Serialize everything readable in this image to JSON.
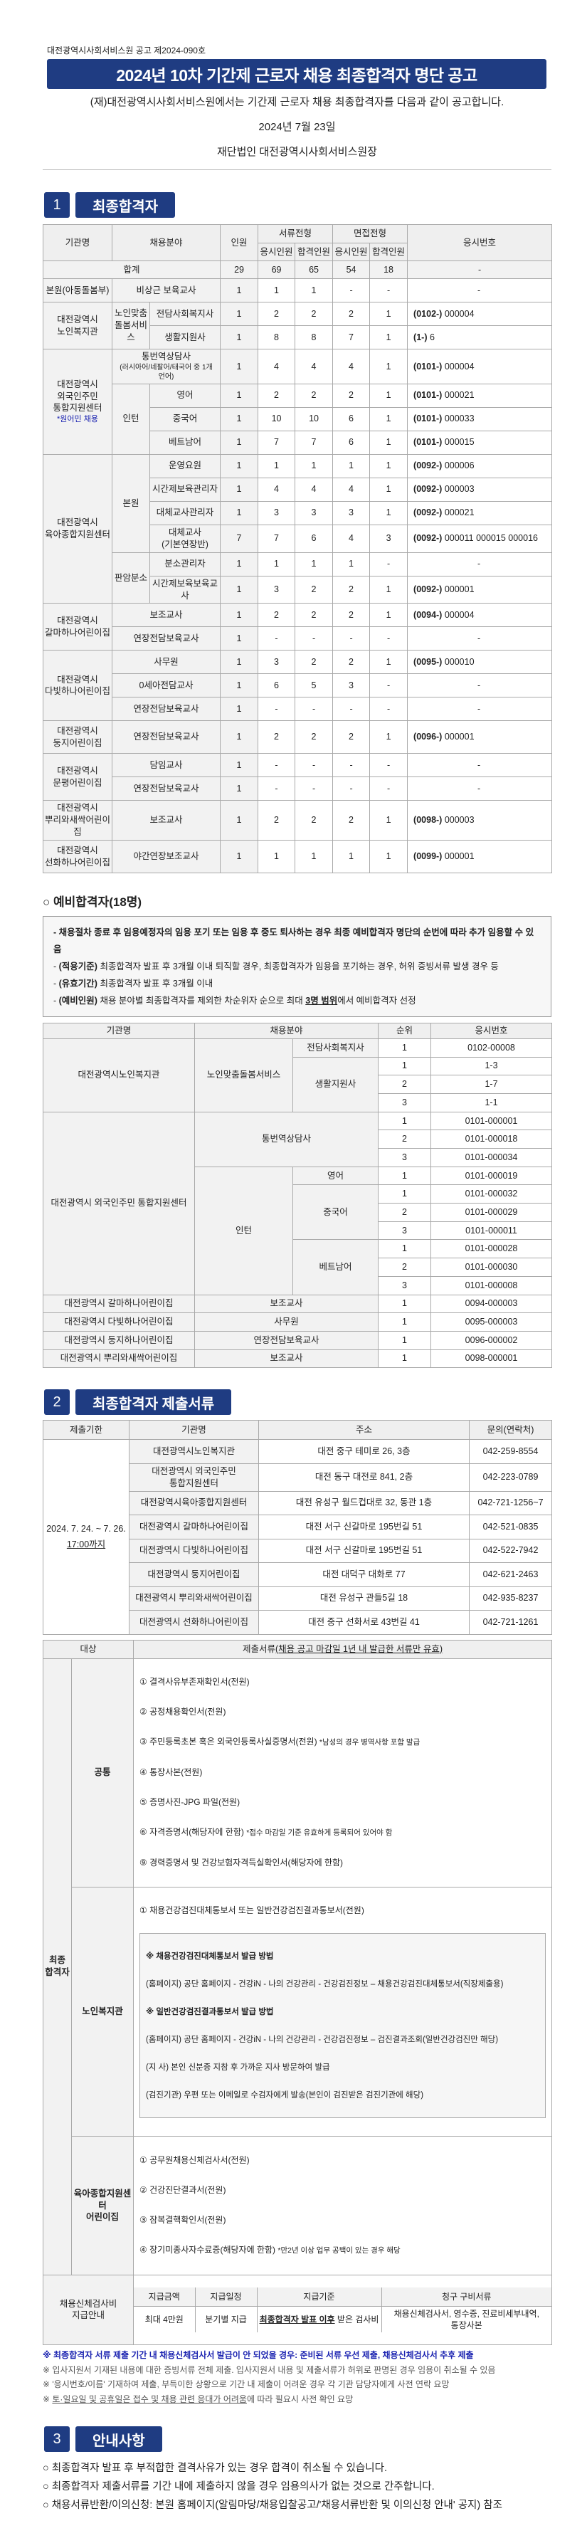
{
  "header": {
    "notice_no": "대전광역시사회서비스원 공고 제2024-090호",
    "title": "2024년 10차 기간제 근로자 채용 최종합격자 명단 공고",
    "intro": "(재)대전광역시사회서비스원에서는 기간제 근로자 채용 최종합격자를 다음과 같이 공고합니다.",
    "date": "2024년  7월  23일",
    "issuer": "재단법인 대전광역시사회서비스원장"
  },
  "colors": {
    "navy": "#1f3c82",
    "note_blue": "#1a22b0",
    "header_gray": "#efefef"
  },
  "section1": {
    "num": "1",
    "label": "최종합격자"
  },
  "table1": {
    "headers": {
      "org": "기관명",
      "field": "채용분야",
      "count": "인원",
      "doc": "서류전형",
      "interview": "면접전형",
      "apply": "응시인원",
      "pass": "합격인원",
      "exam": "응시번호"
    },
    "total": {
      "label": "합계",
      "v": [
        "29",
        "69",
        "65",
        "54",
        "18"
      ],
      "exam": "-"
    },
    "orgs": [
      {
        "name": "본원(아동돌봄부)",
        "rows": [
          {
            "field": "비상근 보육교사",
            "v": [
              "1",
              "1",
              "1",
              "-",
              "-"
            ],
            "exam": "-"
          }
        ]
      },
      {
        "name": "대전광역시\n노인복지관",
        "rows": [
          {
            "group": "노인맞춤\n돌봄서비스",
            "field": "전담사회복지사",
            "v": [
              "1",
              "2",
              "2",
              "2",
              "1"
            ],
            "exam": "(0102-) 000004"
          },
          {
            "group": "노인맞춤\n돌봄서비스",
            "field": "생활지원사",
            "v": [
              "1",
              "8",
              "8",
              "7",
              "1"
            ],
            "exam": "(1-) 6"
          }
        ]
      },
      {
        "name": "대전광역시\n외국인주민\n통합지원센터",
        "note": "*원어민 채용",
        "rows": [
          {
            "field": "통번역상담사",
            "sub": "(러시아어/네팔어/태국어 중 1개 언어)",
            "v": [
              "1",
              "4",
              "4",
              "4",
              "1"
            ],
            "exam": "(0101-) 000004"
          },
          {
            "group": "인턴",
            "field": "영어",
            "v": [
              "1",
              "2",
              "2",
              "2",
              "1"
            ],
            "exam": "(0101-) 000021"
          },
          {
            "group": "인턴",
            "field": "중국어",
            "v": [
              "1",
              "10",
              "10",
              "6",
              "1"
            ],
            "exam": "(0101-) 000033"
          },
          {
            "group": "인턴",
            "field": "베트남어",
            "v": [
              "1",
              "7",
              "7",
              "6",
              "1"
            ],
            "exam": "(0101-) 000015"
          }
        ]
      },
      {
        "name": "대전광역시\n육아종합지원센터",
        "rows": [
          {
            "group": "본원",
            "field": "운영요원",
            "v": [
              "1",
              "1",
              "1",
              "1",
              "1"
            ],
            "exam": "(0092-) 000006"
          },
          {
            "group": "본원",
            "field": "시간제보육관리자",
            "v": [
              "1",
              "4",
              "4",
              "4",
              "1"
            ],
            "exam": "(0092-) 000003"
          },
          {
            "group": "본원",
            "field": "대체교사관리자",
            "v": [
              "1",
              "3",
              "3",
              "3",
              "1"
            ],
            "exam": "(0092-) 000021"
          },
          {
            "group": "본원",
            "field": "대체교사(기본연장반)",
            "v": [
              "7",
              "7",
              "6",
              "4",
              "3"
            ],
            "exam": "(0092-) 000011   000015   000016"
          },
          {
            "group": "판암분소",
            "field": "분소관리자",
            "v": [
              "1",
              "1",
              "1",
              "1",
              "-"
            ],
            "exam": "-"
          },
          {
            "group": "판암분소",
            "field": "시간제보육보육교사",
            "v": [
              "1",
              "3",
              "2",
              "2",
              "1"
            ],
            "exam": "(0092-) 000001"
          }
        ]
      },
      {
        "name": "대전광역시\n갈마하나어린이집",
        "rows": [
          {
            "field": "보조교사",
            "v": [
              "1",
              "2",
              "2",
              "2",
              "1"
            ],
            "exam": "(0094-) 000004"
          },
          {
            "field": "연장전담보육교사",
            "v": [
              "1",
              "-",
              "-",
              "-",
              "-"
            ],
            "exam": "-"
          }
        ]
      },
      {
        "name": "대전광역시\n다빛하나어린이집",
        "rows": [
          {
            "field": "사무원",
            "v": [
              "1",
              "3",
              "2",
              "2",
              "1"
            ],
            "exam": "(0095-) 000010"
          },
          {
            "field": "0세아전담교사",
            "v": [
              "1",
              "6",
              "5",
              "3",
              "-"
            ],
            "exam": "-"
          },
          {
            "field": "연장전담보육교사",
            "v": [
              "1",
              "-",
              "-",
              "-",
              "-"
            ],
            "exam": "-"
          }
        ]
      },
      {
        "name": "대전광역시\n둥지어린이집",
        "rows": [
          {
            "field": "연장전담보육교사",
            "v": [
              "1",
              "2",
              "2",
              "2",
              "1"
            ],
            "exam": "(0096-) 000001"
          }
        ]
      },
      {
        "name": "대전광역시\n문평어린이집",
        "rows": [
          {
            "field": "담임교사",
            "v": [
              "1",
              "-",
              "-",
              "-",
              "-"
            ],
            "exam": "-"
          },
          {
            "field": "연장전담보육교사",
            "v": [
              "1",
              "-",
              "-",
              "-",
              "-"
            ],
            "exam": "-"
          }
        ]
      },
      {
        "name": "대전광역시\n뿌리와새싹어린이집",
        "rows": [
          {
            "field": "보조교사",
            "v": [
              "1",
              "2",
              "2",
              "2",
              "1"
            ],
            "exam": "(0098-) 000003"
          }
        ]
      },
      {
        "name": "대전광역시\n선화하나어린이집",
        "rows": [
          {
            "field": "야간연장보조교사",
            "v": [
              "1",
              "1",
              "1",
              "1",
              "1"
            ],
            "exam": "(0099-) 000001"
          }
        ]
      }
    ]
  },
  "reserve": {
    "heading": "예비합격자(18명)",
    "notes": {
      "n1": "- 채용절차 종료 후 임용예정자의 임용 포기 또는 임용 후 중도 퇴사하는 경우 최종 예비합격자 명단의 순번에 따라 추가 임용할 수 있음",
      "n2_label": "(적용기준)",
      "n2": " 최종합격자 발표 후 3개월 이내 퇴직할 경우, 최종합격자가 임용을 포기하는 경우, 허위 증빙서류 발생 경우 등",
      "n3_label": "(유효기간)",
      "n3": " 최종합격자 발표 후 3개월 이내",
      "n4_label": "(예비인원)",
      "n4": " 채용 분야별 최종합격자를 제외한 차순위자 순으로 최대 ",
      "n4_bold": "3명 범위",
      "n4_end": "에서 예비합격자 선정"
    },
    "headers": {
      "org": "기관명",
      "field": "채용분야",
      "rank": "순위",
      "exam": "응시번호"
    },
    "entries": [
      {
        "org": "대전광역시노인복지관",
        "group": "노인맞춤돌봄서비스",
        "field": "전담사회복지사",
        "rank": "1",
        "exam": "0102-00008"
      },
      {
        "org": "대전광역시노인복지관",
        "group": "노인맞춤돌봄서비스",
        "field": "생활지원사",
        "rank": "1",
        "exam": "1-3"
      },
      {
        "org": "대전광역시노인복지관",
        "group": "노인맞춤돌봄서비스",
        "field": "생활지원사",
        "rank": "2",
        "exam": "1-7"
      },
      {
        "org": "대전광역시노인복지관",
        "group": "노인맞춤돌봄서비스",
        "field": "생활지원사",
        "rank": "3",
        "exam": "1-1"
      },
      {
        "org": "대전광역시 외국인주민 통합지원센터",
        "group": "통번역상담사",
        "rank": "1",
        "exam": "0101-000001"
      },
      {
        "org": "대전광역시 외국인주민 통합지원센터",
        "group": "통번역상담사",
        "rank": "2",
        "exam": "0101-000018"
      },
      {
        "org": "대전광역시 외국인주민 통합지원센터",
        "group": "통번역상담사",
        "rank": "3",
        "exam": "0101-000034"
      },
      {
        "org": "대전광역시 외국인주민 통합지원센터",
        "group": "인턴",
        "field": "영어",
        "rank": "1",
        "exam": "0101-000019"
      },
      {
        "org": "대전광역시 외국인주민 통합지원센터",
        "group": "인턴",
        "field": "중국어",
        "rank": "1",
        "exam": "0101-000032"
      },
      {
        "org": "대전광역시 외국인주민 통합지원센터",
        "group": "인턴",
        "field": "중국어",
        "rank": "2",
        "exam": "0101-000029"
      },
      {
        "org": "대전광역시 외국인주민 통합지원센터",
        "group": "인턴",
        "field": "중국어",
        "rank": "3",
        "exam": "0101-000011"
      },
      {
        "org": "대전광역시 외국인주민 통합지원센터",
        "group": "인턴",
        "field": "베트남어",
        "rank": "1",
        "exam": "0101-000028"
      },
      {
        "org": "대전광역시 외국인주민 통합지원센터",
        "group": "인턴",
        "field": "베트남어",
        "rank": "2",
        "exam": "0101-000030"
      },
      {
        "org": "대전광역시 외국인주민 통합지원센터",
        "group": "인턴",
        "field": "베트남어",
        "rank": "3",
        "exam": "0101-000008"
      },
      {
        "org": "대전광역시 갈마하나어린이집",
        "group": "보조교사",
        "rank": "1",
        "exam": "0094-000003"
      },
      {
        "org": "대전광역시 다빛하나어린이집",
        "group": "사무원",
        "rank": "1",
        "exam": "0095-000003"
      },
      {
        "org": "대전광역시 둥지하나어린이집",
        "group": "연장전담보육교사",
        "rank": "1",
        "exam": "0096-000002"
      },
      {
        "org": "대전광역시 뿌리와새싹어린이집",
        "group": "보조교사",
        "rank": "1",
        "exam": "0098-000001"
      }
    ]
  },
  "section2": {
    "num": "2",
    "label": "최종합격자 제출서류"
  },
  "table2": {
    "headers": {
      "deadline": "제출기한",
      "org": "기관명",
      "addr": "주소",
      "contact": "문의(연락처)"
    },
    "deadline": "2024. 7. 24. ~ 7. 26.",
    "deadline_time": "17:00까지",
    "rows": [
      {
        "org": "대전광역시노인복지관",
        "addr": "대전 중구 테미로 26, 3층",
        "contact": "042-259-8554"
      },
      {
        "org": "대전광역시 외국인주민 통합지원센터",
        "addr": "대전 동구 대전로 841, 2층",
        "contact": "042-223-0789"
      },
      {
        "org": "대전광역시육아종합지원센터",
        "addr": "대전 유성구 월드컵대로 32, 동관 1층",
        "contact": "042-721-1256~7"
      },
      {
        "org": "대전광역시 갈마하나어린이집",
        "addr": "대전 서구 신갈마로 195번길 51",
        "contact": "042-521-0835"
      },
      {
        "org": "대전광역시 다빛하나어린이집",
        "addr": "대전 서구 신갈마로 195번길 51",
        "contact": "042-522-7942"
      },
      {
        "org": "대전광역시 둥지어린이집",
        "addr": "대전 대덕구 대화로 77",
        "contact": "042-621-2463"
      },
      {
        "org": "대전광역시 뿌리와새싹어린이집",
        "addr": "대전 유성구 관들5길 18",
        "contact": "042-935-8237"
      },
      {
        "org": "대전광역시 선화하나어린이집",
        "addr": "대전 중구 선화서로 43번길 41",
        "contact": "042-721-1261"
      }
    ]
  },
  "docs": {
    "h_target": "대상",
    "h_docs": "제출서류",
    "h_docs_note": "(채용 공고 마감일 1년 내 발급한 서류만 유효)",
    "final": "최종\n합격자",
    "common_label": "공통",
    "common": [
      "① 결격사유부존재확인서(전원)",
      "② 공정채용확인서(전원)",
      "③ 주민등록초본 혹은 외국인등록사실증명서(전원)",
      "④ 통장사본(전원)",
      "⑤ 증명사진-JPG 파일(전원)",
      "⑥ 자격증명서(해당자에 한함)",
      "⑨ 경력증명서 및 건강보험자격득실확인서(해당자에 한함)"
    ],
    "common_note3": "*남성의 경우 병역사항 포함 발급",
    "common_note6": "*접수 마감일 기준 유효하게 등록되어 있어야 함",
    "elder_label": "노인복지관",
    "elder_item": "① 채용건강검진대체통보서 또는 일반건강검진결과통보서(전원)",
    "elder_box": [
      "※ 채용건강검진대체통보서 발급 방법",
      "(홈페이지) 공단 홈페이지 - 건강iN - 나의 건강관리 - 건강검진정보 – 채용건강검진대체통보서(직장제출용)",
      "※ 일반건강검진결과통보서 발급 방법",
      "(홈페이지) 공단 홈페이지 - 건강iN - 나의 건강관리 - 건강검진정보 – 검진결과조회(일반건강검진만 해당)",
      "(지    사) 본인 신분증 지참 후 가까운 지사 방문하여 발급",
      "(검진기관) 우편 또는 이메일로 수검자에게 발송(본인이 검진받은 검진기관에 해당)"
    ],
    "child_label": "육아종합지원센터\n어린이집",
    "child": [
      "① 공무원채용신체검사서(전원)",
      "② 건강진단결과서(전원)",
      "③ 잠복결핵확인서(전원)",
      "④ 장기미종사자수료증(해당자에 한함)"
    ],
    "child_note4": "*만2년 이상 업무 공백이 있는 경우 해당",
    "fee_label": "채용신체검사비\n지급안내",
    "fee_headers": [
      "지급금액",
      "지급일정",
      "지급기준",
      "청구 구비서류"
    ],
    "fee_values": {
      "amount": "최대 4만원",
      "schedule": "분기별 지급",
      "basis_u": "최종합격자 발표 이후",
      "basis": " 받은 검사비",
      "docs": "채용신체검사서, 영수증, 진료비세부내역, 통장사본"
    }
  },
  "notes2": {
    "n1": "※ 최종합격자 서류 제출 기간 내 채용신체검사서 발급이 안 되었을 경우: 준비된 서류 우선 제출, 채용신체검사서 추후 제출",
    "n2": "※ 입사지원서 기재된 내용에 대한 증빙서류 전체 제출. 입사지원서 내용 및 제출서류가 허위로 판명된 경우 임용이 취소될 수 있음",
    "n3": "※ '응시번호/이름' 기재하여 제출, 부득이한 상황으로 기간 내 제출이 어려운 경우 각 기관 담당자에게 사전 연락 요망",
    "n4_prefix": "※ ",
    "n4_u": "토·일요일 및 공휴일은 접수 및 채용 관련 응대가 어려움",
    "n4": "에 따라 필요시 사전 확인 요망"
  },
  "section3": {
    "num": "3",
    "label": "안내사항"
  },
  "notes3": [
    "○ 최종합격자 발표 후 부적합한 결격사유가 있는 경우 합격이 취소될 수 있습니다.",
    "○ 최종합격자 제출서류를 기간 내에 제출하지 않을 경우 임용의사가 없는 것으로 간주합니다.",
    "○ 채용서류반환/이의신청: 본원 홈페이지(알림마당/채용입찰공고/'채용서류반환 및 이의신청 안내' 공지) 참조"
  ]
}
